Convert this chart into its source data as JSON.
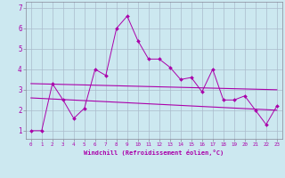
{
  "xlabel": "Windchill (Refroidissement éolien,°C)",
  "background_color": "#cce8f0",
  "grid_color": "#aabbcc",
  "line_color": "#aa00aa",
  "spine_color": "#888899",
  "x_hours": [
    0,
    1,
    2,
    3,
    4,
    5,
    6,
    7,
    8,
    9,
    10,
    11,
    12,
    13,
    14,
    15,
    16,
    17,
    18,
    19,
    20,
    21,
    22,
    23
  ],
  "y_windchill": [
    1.0,
    1.0,
    3.3,
    2.5,
    1.6,
    2.1,
    4.0,
    3.7,
    6.0,
    6.6,
    5.4,
    4.5,
    4.5,
    4.1,
    3.5,
    3.6,
    2.9,
    4.0,
    2.5,
    2.5,
    2.7,
    2.0,
    1.3,
    2.2
  ],
  "trend1_x": [
    0,
    23
  ],
  "trend1_y": [
    3.3,
    3.0
  ],
  "trend2_x": [
    0,
    23
  ],
  "trend2_y": [
    2.6,
    2.0
  ],
  "ylim": [
    0.6,
    7.3
  ],
  "xlim": [
    -0.5,
    23.5
  ]
}
